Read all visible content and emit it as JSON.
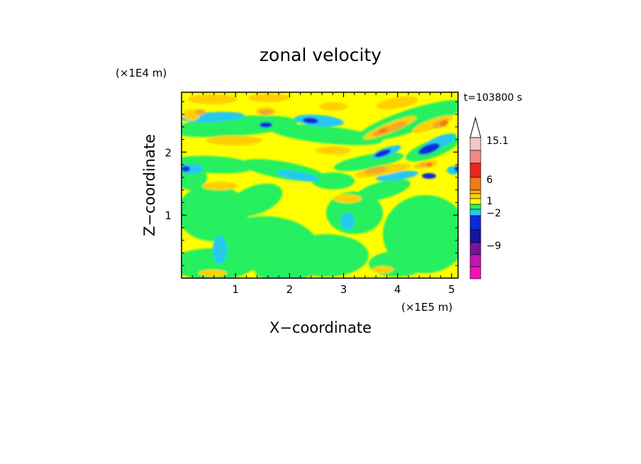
{
  "chart_data": {
    "type": "heatmap",
    "title": "zonal velocity",
    "xlabel": "X−coordinate",
    "ylabel": "Z−coordinate",
    "x_unit": "(×1E5 m)",
    "y_unit": "(×1E4 m)",
    "time_label": "t=103800 s",
    "xlim": [
      0,
      5.12
    ],
    "ylim": [
      0,
      2.95
    ],
    "x_ticks": [
      "1",
      "2",
      "3",
      "4",
      "5"
    ],
    "y_ticks": [
      "1",
      "2"
    ],
    "colorbar": {
      "tick_labels": [
        "15.1",
        "6",
        "1",
        "−2",
        "−9"
      ],
      "levels": [
        {
          "color": "#f2c6c6"
        },
        {
          "color": "#f08a82"
        },
        {
          "color": "#e8281e"
        },
        {
          "color": "#f07a18"
        },
        {
          "color": "#f0aa2a"
        },
        {
          "color": "#ffd000"
        },
        {
          "color": "#ffff00"
        },
        {
          "color": "#28f060"
        },
        {
          "color": "#28c8f0"
        },
        {
          "color": "#0a2ad8"
        },
        {
          "color": "#1414a0"
        },
        {
          "color": "#78149a"
        },
        {
          "color": "#c018b0"
        },
        {
          "color": "#f014b4"
        }
      ]
    },
    "field_colors": {
      "background": "#ffff00",
      "weak_negative": "#28f060",
      "moderate_negative": "#28c8f0",
      "strong_negative": "#0a2ad8",
      "weak_positive": "#ffd000",
      "moderate_positive": "#f0aa2a",
      "strong_positive": "#f07a18"
    }
  }
}
